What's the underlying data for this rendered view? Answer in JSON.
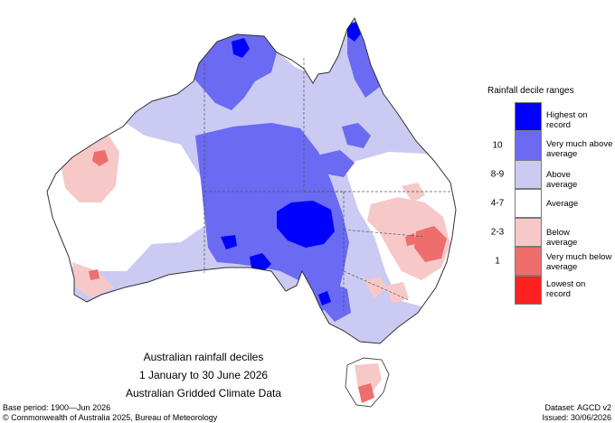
{
  "legend": {
    "title": "Rainfall decile ranges",
    "items": [
      {
        "label": "Highest on record",
        "color": "#0000ff"
      },
      {
        "label": "Very much above average",
        "range": "10",
        "color": "#6a6af2"
      },
      {
        "label": "Above average",
        "range": "8-9",
        "color": "#cacaf3"
      },
      {
        "label": "Average",
        "range": "4-7",
        "color": "#ffffff"
      },
      {
        "label": "Below average",
        "range": "2-3",
        "color": "#f7c8c8"
      },
      {
        "label": "Very much below average",
        "range": "1",
        "color": "#ee6e6e"
      },
      {
        "label": "Lowest on record",
        "color": "#ff2020"
      }
    ]
  },
  "caption": {
    "line1": "Australian rainfall deciles",
    "line2": "1 January to 30 June 2026",
    "line3": "Australian Gridded Climate Data"
  },
  "footer": {
    "base_period": "Base period: 1900—Jun 2026",
    "dataset": "Dataset: AGCD v2",
    "copyright": "© Commonwealth of Australia 2025, Bureau of Meteorology",
    "issued": "Issued: 30/06/2026"
  }
}
